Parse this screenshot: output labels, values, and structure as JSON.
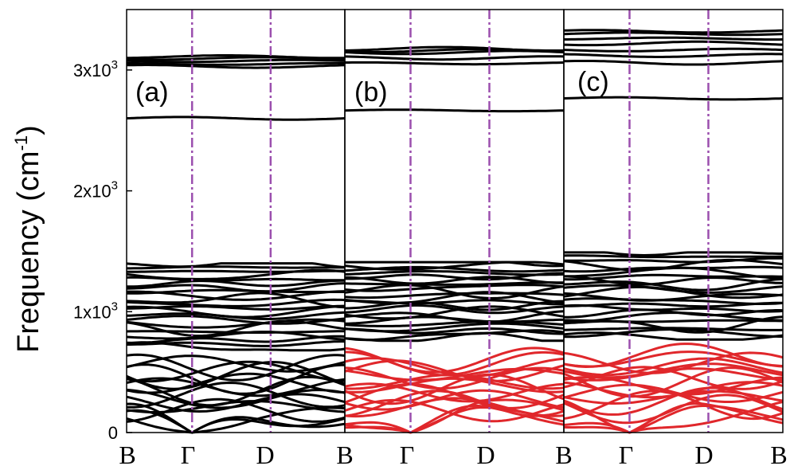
{
  "chart_data": {
    "type": "line",
    "ylabel": "Frequency (cm",
    "ylabel_sup": "-1",
    "ylabel_close": ")",
    "ylim": [
      0,
      3500
    ],
    "grid": false,
    "legend": "none",
    "y_ticks": [
      {
        "value": 0,
        "base": "0",
        "exp": ""
      },
      {
        "value": 1000,
        "base": "1x10",
        "exp": "3"
      },
      {
        "value": 2000,
        "base": "2x10",
        "exp": "3"
      },
      {
        "value": 3000,
        "base": "3x10",
        "exp": "3"
      }
    ],
    "colors": {
      "frame": "#000000",
      "band_black": "#000000",
      "band_red": "#e0272b",
      "high_symmetry_line": "#9b4fae"
    },
    "x_path": {
      "labels": [
        "B",
        "Γ",
        "D",
        "B"
      ],
      "positions": [
        0,
        0.3,
        0.66,
        1
      ]
    },
    "panels": [
      {
        "label": "(a)",
        "red_band_count": 0,
        "high_bands_cm1": [
          2600,
          3030,
          3050,
          3075,
          3095,
          3110
        ],
        "mid_band_range_cm1": [
          700,
          1400
        ],
        "acoustic_max_cm1": 690
      },
      {
        "label": "(b)",
        "red_band_count": 18,
        "high_bands_cm1": [
          2665,
          3055,
          3100,
          3145,
          3160,
          3175
        ],
        "mid_band_range_cm1": [
          780,
          1410
        ],
        "acoustic_max_cm1": 720
      },
      {
        "label": "(c)",
        "red_band_count": 18,
        "high_bands_cm1": [
          2765,
          3060,
          3120,
          3165,
          3220,
          3260,
          3300,
          3320
        ],
        "mid_band_range_cm1": [
          790,
          1490
        ],
        "acoustic_max_cm1": 760
      }
    ]
  }
}
